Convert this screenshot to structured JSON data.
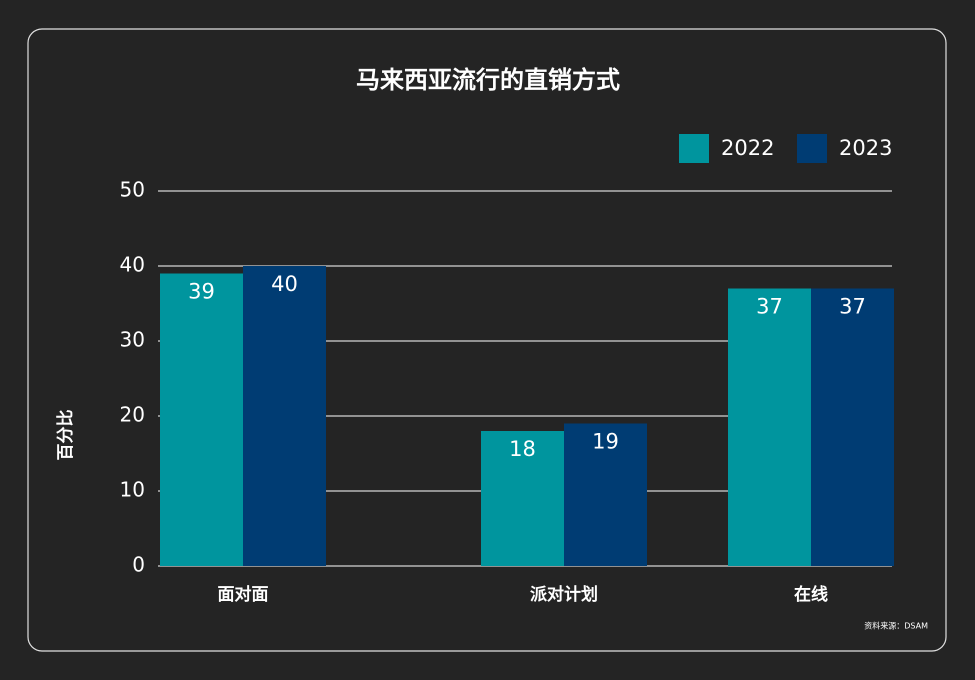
{
  "chart_data": {
    "type": "bar",
    "title": "马来西亚流行的直销方式",
    "categories": [
      "面对面",
      "派对计划",
      "在线"
    ],
    "series": [
      {
        "name": "2022",
        "color": "#00959e",
        "values": [
          39,
          18,
          37
        ]
      },
      {
        "name": "2023",
        "color": "#003c73",
        "values": [
          40,
          19,
          37
        ]
      }
    ],
    "ylabel": "百分比",
    "ylim": [
      0,
      50
    ],
    "yticks": [
      0,
      10,
      20,
      30,
      40,
      50
    ],
    "grid": true,
    "legend": "top-right",
    "source": "资料来源：DSAM"
  }
}
